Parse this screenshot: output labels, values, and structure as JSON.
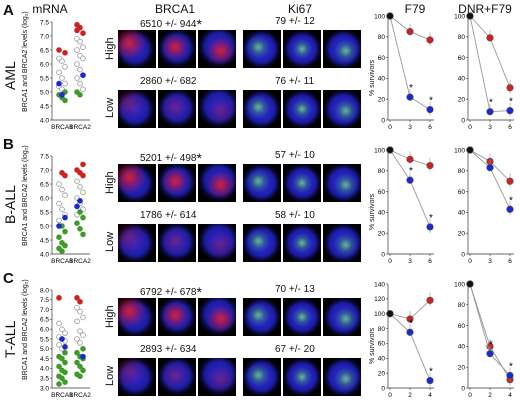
{
  "headers": {
    "mrna": "mRNA",
    "brca1": "BRCA1",
    "ki67": "Ki67",
    "f79": "F79",
    "dnr": "DNR+F79"
  },
  "colors": {
    "high": "#cc2222",
    "low": "#1a2ad0",
    "gray": "#a8a8a8",
    "green": "#3f9a2a",
    "line": "#999999"
  },
  "rows": [
    {
      "letter": "A",
      "label": "AML",
      "mrna": {
        "ylabel": "BRCA1 and BRCA2 levels (log₂)",
        "yticks": [
          "4.0",
          "4.5",
          "5.0",
          "5.5",
          "6.0",
          "6.5",
          "7.0",
          "7.5"
        ],
        "xlabels": [
          "BRCA1",
          "BRCA2"
        ]
      },
      "high_label": "High",
      "low_label": "Low",
      "brca1_high": "6510 +/- 944",
      "brca1_low": "2860 +/- 682",
      "ki67_high": "79 +/- 12",
      "ki67_low": "76 +/- 11",
      "star": "*",
      "f79": {
        "ylabel": "% survivors",
        "yticks": [
          "0",
          "20",
          "40",
          "60",
          "80",
          "100"
        ],
        "xticks": [
          "0",
          "3",
          "6"
        ]
      },
      "dnr": {
        "yticks": [
          "0",
          "20",
          "40",
          "60",
          "80",
          "100"
        ],
        "xticks": [
          "0",
          "3",
          "6"
        ]
      }
    },
    {
      "letter": "B",
      "label": "B-ALL",
      "mrna": {
        "ylabel": "BRCA1 and BRCA2 levels (log₂)",
        "yticks": [
          "4.0",
          "4.5",
          "5.0",
          "5.5",
          "6.0",
          "6.5",
          "7.0",
          "7.5"
        ],
        "xlabels": [
          "BRCA1",
          "BRCA2"
        ]
      },
      "high_label": "High",
      "low_label": "Low",
      "brca1_high": "5201 +/- 498",
      "brca1_low": "1786 +/- 614",
      "ki67_high": "57 +/- 10",
      "ki67_low": "58 +/- 10",
      "star": "*",
      "f79": {
        "ylabel": "% survivors",
        "yticks": [
          "0",
          "20",
          "40",
          "60",
          "80",
          "100"
        ],
        "xticks": [
          "0",
          "3",
          "6"
        ]
      },
      "dnr": {
        "yticks": [
          "0",
          "20",
          "40",
          "60",
          "80",
          "100"
        ],
        "xticks": [
          "0",
          "3",
          "6"
        ]
      }
    },
    {
      "letter": "C",
      "label": "T-ALL",
      "mrna": {
        "ylabel": "BRCA1 and BRCA2 levels (log₂)",
        "yticks": [
          "3.0",
          "3.5",
          "4.0",
          "4.5",
          "5.0",
          "5.5",
          "6.0",
          "6.5",
          "7.0",
          "7.5",
          "8.0"
        ],
        "xlabels": [
          "BRCA1",
          "BRCA2"
        ]
      },
      "high_label": "High",
      "low_label": "Low",
      "brca1_high": "6792 +/- 678",
      "brca1_low": "2893 +/- 634",
      "ki67_high": "70 +/- 13",
      "ki67_low": "67 +/- 20",
      "star": "*",
      "f79": {
        "ylabel": "% survivors",
        "yticks": [
          "0",
          "20",
          "40",
          "60",
          "80",
          "100",
          "120",
          "140"
        ],
        "xticks": [
          "0",
          "2",
          "4"
        ]
      },
      "dnr": {
        "yticks": [
          "0",
          "20",
          "40",
          "60",
          "80",
          "100"
        ],
        "xticks": [
          "0",
          "2",
          "4"
        ]
      }
    }
  ],
  "chart_data": [
    {
      "panel": "A",
      "title": "F79",
      "type": "line",
      "ylabel": "% survivors",
      "x": [
        0,
        3,
        6
      ],
      "ylim": [
        0,
        100
      ],
      "series": [
        {
          "color": "#cc2222",
          "values": [
            100,
            85,
            77
          ]
        },
        {
          "color": "#1a2ad0",
          "values": [
            100,
            22,
            10
          ]
        }
      ]
    },
    {
      "panel": "A",
      "title": "DNR+F79",
      "type": "line",
      "x": [
        0,
        3,
        6
      ],
      "ylim": [
        0,
        100
      ],
      "series": [
        {
          "color": "#cc2222",
          "values": [
            100,
            79,
            31
          ]
        },
        {
          "color": "#1a2ad0",
          "values": [
            100,
            8,
            9
          ]
        }
      ]
    },
    {
      "panel": "B",
      "title": "F79",
      "type": "line",
      "ylabel": "% survivors",
      "x": [
        0,
        3,
        6
      ],
      "ylim": [
        0,
        100
      ],
      "series": [
        {
          "color": "#cc2222",
          "values": [
            100,
            91,
            85
          ]
        },
        {
          "color": "#1a2ad0",
          "values": [
            100,
            71,
            26
          ]
        }
      ]
    },
    {
      "panel": "B",
      "title": "DNR+F79",
      "type": "line",
      "x": [
        0,
        3,
        6
      ],
      "ylim": [
        0,
        100
      ],
      "series": [
        {
          "color": "#cc2222",
          "values": [
            100,
            89,
            70
          ]
        },
        {
          "color": "#1a2ad0",
          "values": [
            100,
            83,
            43
          ]
        }
      ]
    },
    {
      "panel": "C",
      "title": "F79",
      "type": "line",
      "ylabel": "% survivors",
      "x": [
        0,
        2,
        4
      ],
      "ylim": [
        0,
        140
      ],
      "series": [
        {
          "color": "#cc2222",
          "values": [
            100,
            93,
            118
          ]
        },
        {
          "color": "#1a2ad0",
          "values": [
            100,
            75,
            10
          ]
        }
      ]
    },
    {
      "panel": "C",
      "title": "DNR+F79",
      "type": "line",
      "x": [
        0,
        2,
        4
      ],
      "ylim": [
        0,
        100
      ],
      "series": [
        {
          "color": "#cc2222",
          "values": [
            100,
            40,
            8
          ]
        },
        {
          "color": "#1a2ad0",
          "values": [
            100,
            33,
            12
          ]
        }
      ]
    }
  ],
  "mrna_points": [
    {
      "panel": "A",
      "ylim": [
        4.0,
        7.5
      ],
      "BRCA1": {
        "red": [
          6.4,
          6.5
        ],
        "gray": [
          6.2,
          6.1,
          5.9,
          5.7,
          5.5,
          5.3,
          5.2,
          5.1
        ],
        "blue": [
          5.3,
          4.9
        ],
        "green": [
          5.0,
          4.9,
          4.8,
          4.7
        ]
      },
      "BRCA2": {
        "red": [
          7.4,
          7.3,
          7.1,
          7.2
        ],
        "gray": [
          6.9,
          6.8,
          6.6,
          6.5,
          6.3,
          6.2,
          6.0,
          5.8,
          5.6,
          5.5,
          5.3,
          5.1
        ],
        "blue": [
          5.6
        ],
        "green": [
          5.0,
          4.9
        ]
      }
    },
    {
      "panel": "B",
      "ylim": [
        4.0,
        7.5
      ],
      "BRCA1": {
        "red": [
          6.9,
          6.8
        ],
        "gray": [
          6.5,
          6.3,
          6.1,
          5.8,
          5.6,
          5.4,
          5.2
        ],
        "blue": [
          5.3,
          5.0
        ],
        "green": [
          5.0,
          4.8,
          4.6,
          4.4,
          4.3,
          4.2,
          4.1
        ]
      },
      "BRCA2": {
        "red": [
          7.2,
          7.0,
          6.9,
          6.8
        ],
        "gray": [
          6.6,
          6.4,
          6.2,
          6.0,
          5.8,
          5.6,
          5.4
        ],
        "blue": [
          5.7,
          5.9
        ],
        "green": [
          5.5,
          5.3,
          5.1,
          4.9,
          4.7
        ]
      }
    },
    {
      "panel": "C",
      "ylim": [
        3.0,
        8.0
      ],
      "BRCA1": {
        "red": [
          7.6
        ],
        "gray": [
          6.3,
          6.0,
          5.8,
          5.6,
          5.5,
          5.4,
          5.2,
          5.0
        ],
        "blue": [
          5.5,
          5.1
        ],
        "green": [
          4.8,
          4.6,
          4.5,
          4.3,
          4.1,
          3.9,
          3.8,
          3.6,
          3.5,
          3.3,
          3.2
        ]
      },
      "BRCA2": {
        "red": [
          7.6,
          7.4
        ],
        "gray": [
          7.1,
          6.9,
          6.6,
          6.4,
          5.9,
          5.7,
          5.5,
          5.3
        ],
        "blue": [
          4.6
        ],
        "green": [
          5.0,
          4.8,
          4.6,
          4.5,
          4.3,
          4.1,
          3.9,
          3.7,
          3.6
        ]
      }
    }
  ]
}
